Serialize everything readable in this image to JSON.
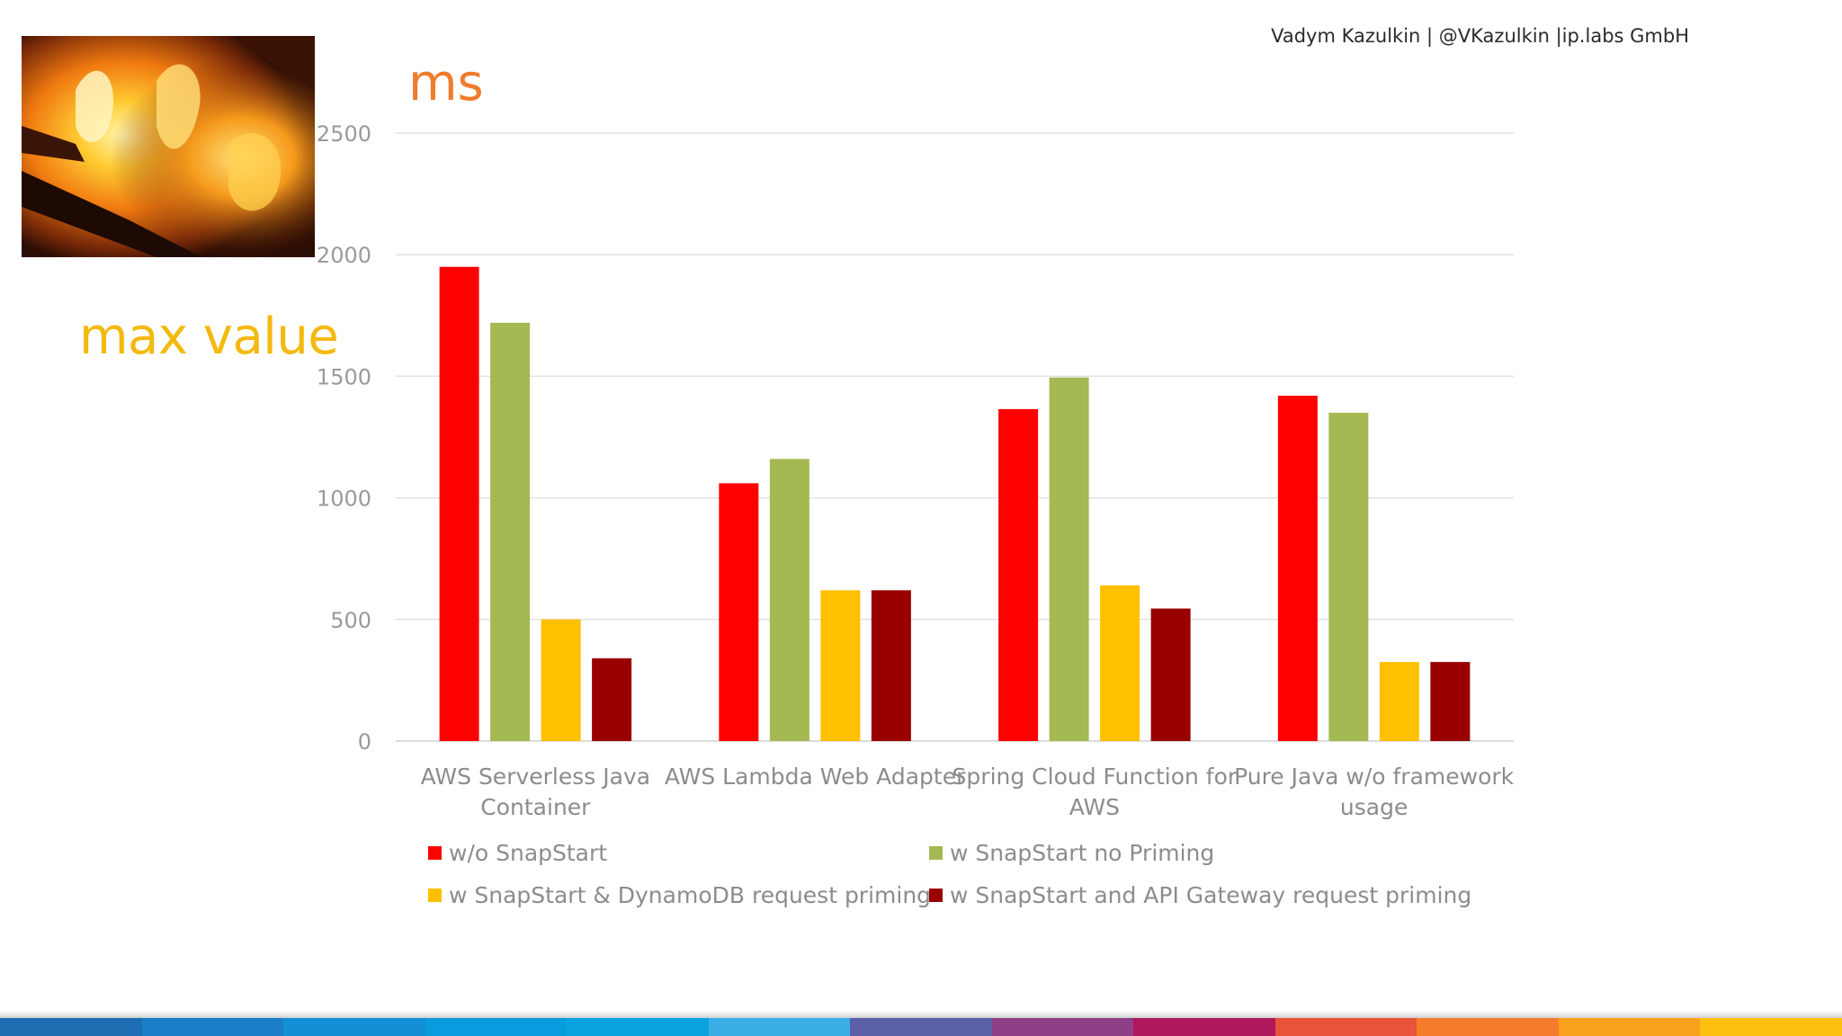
{
  "header": {
    "author": "Vadym Kazulkin | @VKazulkin |ip.labs GmbH"
  },
  "slide": {
    "title": "max value",
    "unit": "ms"
  },
  "image": {
    "icon": "fire-photo"
  },
  "chart_data": {
    "type": "bar",
    "title": "max value",
    "ylabel": "ms",
    "xlabel": "",
    "ylim": [
      0,
      2500
    ],
    "yticks": [
      "0",
      "500",
      "1000",
      "1500",
      "2000",
      "2500"
    ],
    "ytick_values": [
      0,
      500,
      1000,
      1500,
      2000,
      2500
    ],
    "grid": true,
    "legend_position": "bottom",
    "categories": [
      [
        "AWS Serverless Java",
        "Container"
      ],
      [
        "AWS Lambda Web Adapter"
      ],
      [
        "Spring Cloud Function for",
        "AWS"
      ],
      [
        "Pure Java w/o framework",
        "usage"
      ]
    ],
    "series": [
      {
        "name": "w/o SnapStart",
        "color": "#ff0000",
        "values": [
          1950,
          1060,
          1365,
          1420
        ]
      },
      {
        "name": "w SnapStart no Priming",
        "color": "#a4b952",
        "values": [
          1720,
          1160,
          1495,
          1350
        ]
      },
      {
        "name": "w SnapStart & DynamoDB request priming",
        "color": "#ffc000",
        "values": [
          500,
          620,
          640,
          325
        ]
      },
      {
        "name": "w SnapStart and API Gateway request priming",
        "color": "#990000",
        "values": [
          340,
          620,
          545,
          325
        ]
      }
    ]
  },
  "footer": {
    "stripe_colors": [
      "#1f6db3",
      "#1a7fc6",
      "#138fd5",
      "#0a9bdf",
      "#0aa3e0",
      "#3aaee4",
      "#5a5fa6",
      "#8e3f86",
      "#b0185e",
      "#e8533a",
      "#f47c2a",
      "#f9a11c",
      "#fdc010"
    ]
  }
}
